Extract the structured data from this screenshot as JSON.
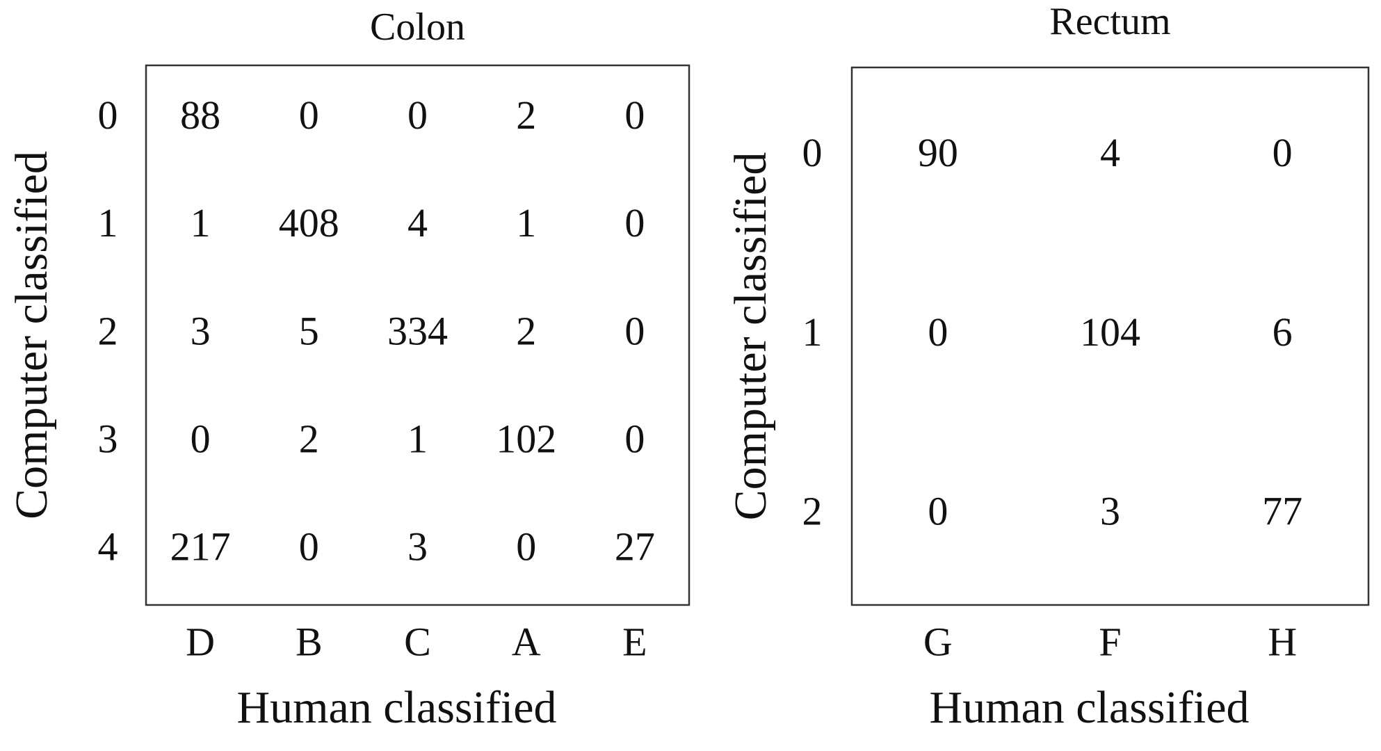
{
  "chart_data": [
    {
      "type": "matrix",
      "title": "Colon",
      "xlabel": "Human classified",
      "ylabel": "Computer classified",
      "columns": [
        "D",
        "B",
        "C",
        "A",
        "E"
      ],
      "rows": [
        "0",
        "1",
        "2",
        "3",
        "4"
      ],
      "cells": [
        [
          88,
          0,
          0,
          2,
          0
        ],
        [
          1,
          408,
          4,
          1,
          0
        ],
        [
          3,
          5,
          334,
          2,
          0
        ],
        [
          0,
          2,
          1,
          102,
          0
        ],
        [
          217,
          0,
          3,
          0,
          27
        ]
      ]
    },
    {
      "type": "matrix",
      "title": "Rectum",
      "xlabel": "Human classified",
      "ylabel": "Computer classified",
      "columns": [
        "G",
        "F",
        "H"
      ],
      "rows": [
        "0",
        "1",
        "2"
      ],
      "cells": [
        [
          90,
          4,
          0
        ],
        [
          0,
          104,
          6
        ],
        [
          0,
          3,
          77
        ]
      ]
    }
  ]
}
